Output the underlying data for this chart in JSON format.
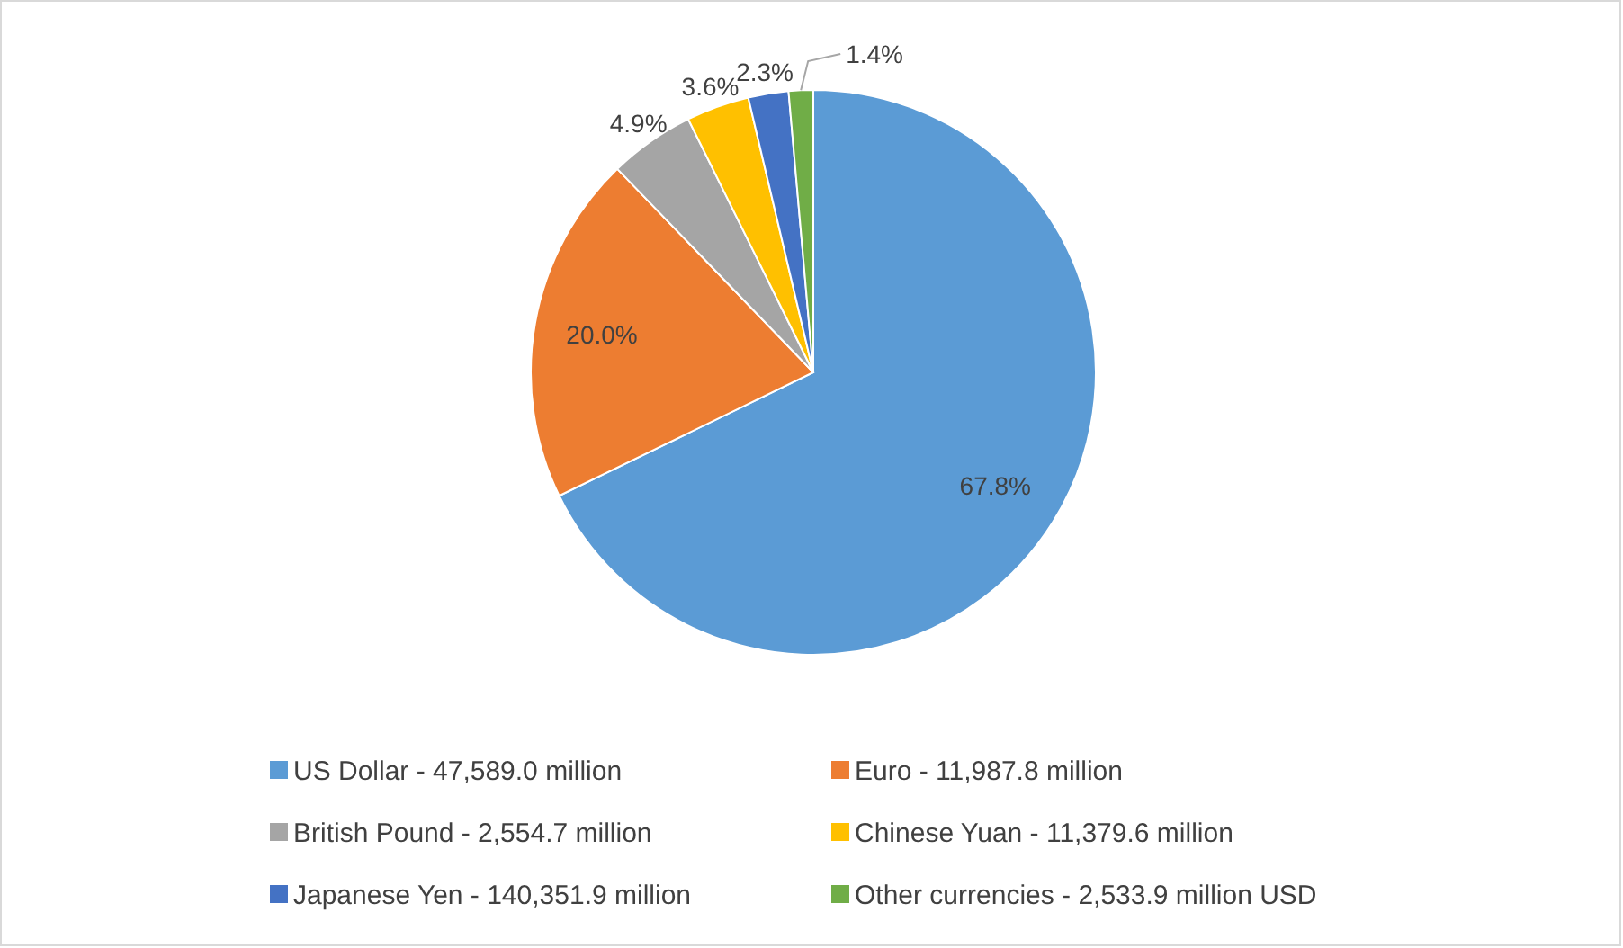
{
  "chart_data": {
    "type": "pie",
    "categories": [
      "US Dollar - 47,589.0 million",
      "Euro - 11,987.8 million",
      "British Pound - 2,554.7 million",
      "Chinese Yuan - 11,379.6 million",
      "Japanese Yen - 140,351.9 million",
      "Other currencies - 2,533.9 million USD"
    ],
    "values": [
      67.8,
      20.0,
      4.9,
      3.6,
      2.3,
      1.4
    ],
    "colors": [
      "#5b9bd5",
      "#ed7d31",
      "#a5a5a5",
      "#ffc000",
      "#4472c4",
      "#70ad47"
    ],
    "value_labels": [
      "67.8%",
      "20.0%",
      "4.9%",
      "3.6%",
      "2.3%",
      "1.4%"
    ],
    "legend": "bottom"
  }
}
